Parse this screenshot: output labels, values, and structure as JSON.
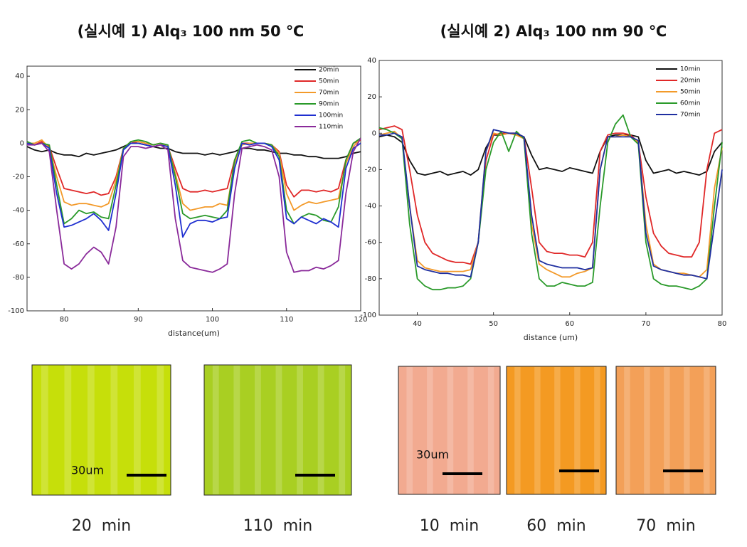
{
  "chart_data": [
    {
      "type": "line",
      "title": "(실시예 1) Alq₃ 100 nm 50 ℃",
      "x_label": "distance(um)",
      "xlim": [
        75,
        120
      ],
      "ylim": [
        -100,
        46
      ],
      "xticks": [
        80,
        90,
        100,
        110,
        120
      ],
      "yticks": [
        -100,
        -80,
        -60,
        -40,
        -20,
        0,
        20,
        40
      ],
      "legend": "upper right",
      "x": [
        75,
        76,
        77,
        78,
        79,
        80,
        81,
        82,
        83,
        84,
        85,
        86,
        87,
        88,
        89,
        90,
        91,
        92,
        93,
        94,
        95,
        96,
        97,
        98,
        99,
        100,
        101,
        102,
        103,
        104,
        105,
        106,
        107,
        108,
        109,
        110,
        111,
        112,
        113,
        114,
        115,
        116,
        117,
        118,
        119,
        120
      ],
      "series": [
        {
          "name": "20min",
          "color": "#111111",
          "values": [
            -2,
            -4,
            -5,
            -4,
            -6,
            -7,
            -7,
            -8,
            -6,
            -7,
            -6,
            -5,
            -4,
            -2,
            0,
            0,
            -1,
            -2,
            -3,
            -3,
            -5,
            -6,
            -6,
            -6,
            -7,
            -6,
            -7,
            -6,
            -5,
            -3,
            -3,
            -4,
            -4,
            -5,
            -6,
            -6,
            -7,
            -7,
            -8,
            -8,
            -9,
            -9,
            -9,
            -8,
            -6,
            -5
          ]
        },
        {
          "name": "50min",
          "color": "#e02828",
          "values": [
            0,
            -1,
            1,
            -2,
            -15,
            -27,
            -28,
            -29,
            -30,
            -29,
            -31,
            -30,
            -20,
            -3,
            0,
            1,
            0,
            -1,
            0,
            -2,
            -15,
            -27,
            -29,
            -29,
            -28,
            -29,
            -28,
            -27,
            -10,
            0,
            0,
            0,
            0,
            -1,
            -5,
            -25,
            -32,
            -28,
            -28,
            -29,
            -28,
            -29,
            -27,
            -10,
            0,
            2
          ]
        },
        {
          "name": "70min",
          "color": "#f39a2a",
          "values": [
            0,
            0,
            2,
            -3,
            -20,
            -35,
            -37,
            -36,
            -36,
            -37,
            -38,
            -36,
            -22,
            -3,
            1,
            1,
            0,
            -1,
            0,
            -2,
            -18,
            -36,
            -40,
            -39,
            -38,
            -38,
            -36,
            -37,
            -12,
            -1,
            0,
            0,
            0,
            -1,
            -6,
            -30,
            -40,
            -37,
            -35,
            -36,
            -35,
            -34,
            -33,
            -12,
            -2,
            3
          ]
        },
        {
          "name": "90min",
          "color": "#2a9a2a",
          "values": [
            1,
            -1,
            0,
            -1,
            -25,
            -48,
            -45,
            -40,
            -42,
            -41,
            -44,
            -45,
            -25,
            -3,
            1,
            2,
            1,
            -1,
            0,
            -1,
            -20,
            -42,
            -45,
            -44,
            -43,
            -44,
            -45,
            -40,
            -10,
            1,
            2,
            0,
            0,
            -1,
            -8,
            -40,
            -48,
            -44,
            -42,
            -43,
            -46,
            -47,
            -38,
            -10,
            0,
            3
          ]
        },
        {
          "name": "100min",
          "color": "#1f2fd0",
          "values": [
            0,
            -1,
            0,
            -3,
            -30,
            -50,
            -49,
            -47,
            -45,
            -42,
            -46,
            -52,
            -30,
            -4,
            0,
            0,
            -1,
            -2,
            -1,
            -2,
            -25,
            -56,
            -48,
            -46,
            -46,
            -47,
            -45,
            -44,
            -15,
            0,
            -1,
            0,
            0,
            -2,
            -10,
            -45,
            -48,
            -44,
            -46,
            -48,
            -45,
            -47,
            -50,
            -15,
            -3,
            0
          ]
        },
        {
          "name": "110min",
          "color": "#8a2a9a",
          "values": [
            -1,
            -1,
            0,
            -5,
            -40,
            -72,
            -75,
            -72,
            -66,
            -62,
            -65,
            -72,
            -50,
            -8,
            -2,
            -2,
            -3,
            -2,
            -1,
            -4,
            -45,
            -70,
            -74,
            -75,
            -76,
            -77,
            -75,
            -72,
            -30,
            -3,
            -2,
            -1,
            -2,
            -4,
            -20,
            -65,
            -77,
            -76,
            -76,
            -74,
            -75,
            -73,
            -70,
            -30,
            -5,
            3
          ]
        }
      ]
    },
    {
      "type": "line",
      "title": "(실시예 2) Alq₃ 100 nm 90 ℃",
      "x_label": "distance (um)",
      "xlim": [
        35,
        80
      ],
      "ylim": [
        -100,
        40
      ],
      "xticks": [
        40,
        50,
        60,
        70,
        80
      ],
      "yticks": [
        -100,
        -80,
        -60,
        -40,
        -20,
        0,
        20,
        40
      ],
      "legend": "upper right",
      "x": [
        35,
        36,
        37,
        38,
        39,
        40,
        41,
        42,
        43,
        44,
        45,
        46,
        47,
        48,
        49,
        50,
        51,
        52,
        53,
        54,
        55,
        56,
        57,
        58,
        59,
        60,
        61,
        62,
        63,
        64,
        65,
        66,
        67,
        68,
        69,
        70,
        71,
        72,
        73,
        74,
        75,
        76,
        77,
        78,
        79,
        80
      ],
      "series": [
        {
          "name": "10min",
          "color": "#111111",
          "values": [
            -2,
            -1,
            -2,
            -5,
            -15,
            -22,
            -23,
            -22,
            -21,
            -23,
            -22,
            -21,
            -23,
            -20,
            -8,
            -1,
            -1,
            0,
            -1,
            -2,
            -12,
            -20,
            -19,
            -20,
            -21,
            -19,
            -20,
            -21,
            -22,
            -10,
            -2,
            -1,
            -1,
            -1,
            -2,
            -15,
            -22,
            -21,
            -20,
            -22,
            -21,
            -22,
            -23,
            -21,
            -10,
            -5
          ]
        },
        {
          "name": "20min",
          "color": "#e02828",
          "values": [
            2,
            3,
            4,
            2,
            -20,
            -45,
            -60,
            -66,
            -68,
            -70,
            -71,
            -71,
            -72,
            -60,
            -15,
            -1,
            0,
            0,
            0,
            -2,
            -30,
            -60,
            -65,
            -66,
            -66,
            -67,
            -67,
            -68,
            -60,
            -10,
            -1,
            0,
            0,
            -1,
            -5,
            -35,
            -55,
            -62,
            -66,
            -67,
            -68,
            -68,
            -60,
            -20,
            0,
            2
          ]
        },
        {
          "name": "50min",
          "color": "#f39a2a",
          "values": [
            -1,
            0,
            1,
            -3,
            -40,
            -70,
            -74,
            -75,
            -76,
            -76,
            -76,
            -76,
            -75,
            -60,
            -10,
            0,
            -1,
            0,
            -1,
            -3,
            -50,
            -72,
            -75,
            -77,
            -79,
            -79,
            -77,
            -76,
            -74,
            -20,
            -2,
            -2,
            -1,
            -2,
            -5,
            -50,
            -72,
            -75,
            -76,
            -77,
            -77,
            -78,
            -79,
            -75,
            -30,
            -8
          ]
        },
        {
          "name": "60min",
          "color": "#2a9a2a",
          "values": [
            3,
            2,
            0,
            -3,
            -50,
            -80,
            -84,
            -86,
            -86,
            -85,
            -85,
            -84,
            -80,
            -60,
            -20,
            -5,
            1,
            -10,
            1,
            -3,
            -55,
            -80,
            -84,
            -84,
            -82,
            -83,
            -84,
            -84,
            -82,
            -40,
            -5,
            5,
            10,
            -2,
            -6,
            -60,
            -80,
            -83,
            -84,
            -84,
            -85,
            -86,
            -84,
            -80,
            -40,
            -5
          ]
        },
        {
          "name": "70min",
          "color": "#1f2fa0",
          "values": [
            -1,
            -1,
            0,
            -2,
            -40,
            -73,
            -75,
            -76,
            -77,
            -77,
            -78,
            -78,
            -79,
            -60,
            -10,
            2,
            1,
            0,
            0,
            -2,
            -45,
            -70,
            -72,
            -73,
            -74,
            -74,
            -74,
            -75,
            -74,
            -20,
            -2,
            -2,
            -2,
            -2,
            -4,
            -55,
            -73,
            -75,
            -76,
            -77,
            -78,
            -78,
            -79,
            -80,
            -50,
            -20
          ]
        }
      ]
    }
  ],
  "images": [
    {
      "caption": "20  min",
      "color": "#c6df0a",
      "scale_label": "30um"
    },
    {
      "caption": "110  min",
      "color": "#a9cf22"
    },
    {
      "caption": "10  min",
      "color": "#f2aa90",
      "scale_label": "30um"
    },
    {
      "caption": "60  min",
      "color": "#f49a22"
    },
    {
      "caption": "70  min",
      "color": "#f3a058"
    }
  ]
}
